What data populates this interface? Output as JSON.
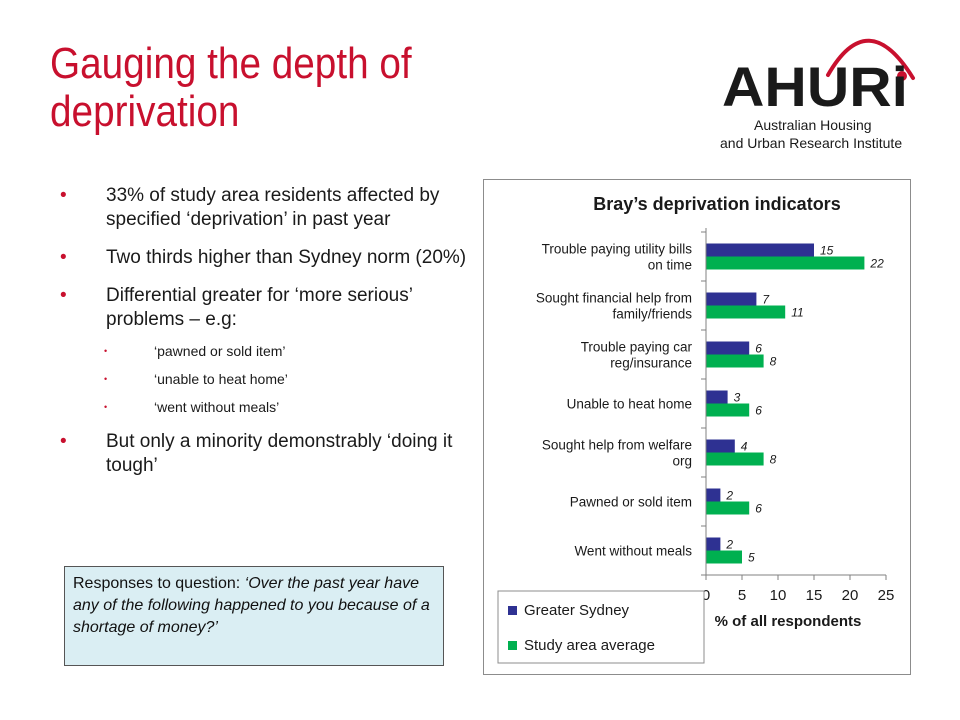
{
  "slide": {
    "title": "Gauging the depth of deprivation",
    "bullets": [
      "33% of study area residents affected by specified ‘deprivation’ in past year",
      "Two thirds higher than Sydney norm (20%)",
      "Differential greater for ‘more serious’ problems – e.g:"
    ],
    "sub_bullets": [
      "‘pawned or sold item’",
      "‘unable to heat home’",
      "‘went without meals’"
    ],
    "last_bullet": "But only a minority demonstrably ‘doing it tough’",
    "note_prefix": "Responses to question: ",
    "note_question": "‘Over the past year have any of the following happened to you because of a shortage of money?’",
    "accent_color": "#c8102e"
  },
  "logo": {
    "wordmark": "AHURi",
    "line1": "Australian Housing",
    "line2": "and Urban Research Institute"
  },
  "chart_data": {
    "type": "bar",
    "orientation": "horizontal",
    "title": "Bray’s deprivation indicators",
    "xlabel": "% of all respondents",
    "ylabel": "",
    "categories": [
      [
        "Trouble paying utility bills",
        "on time"
      ],
      [
        "Sought financial help from",
        "family/friends"
      ],
      [
        "Trouble paying car",
        "reg/insurance"
      ],
      [
        "Unable to heat home"
      ],
      [
        "Sought help from welfare",
        "org"
      ],
      [
        "Pawned or sold item"
      ],
      [
        "Went without meals"
      ]
    ],
    "series": [
      {
        "name": "Greater Sydney",
        "color": "#2e3192",
        "values": [
          15,
          7,
          6,
          3,
          4,
          2,
          2
        ]
      },
      {
        "name": "Study area average",
        "color": "#00b050",
        "values": [
          22,
          11,
          8,
          6,
          8,
          6,
          5
        ]
      }
    ],
    "xlim": [
      0,
      25
    ],
    "xticks": [
      "0",
      "5",
      "10",
      "15",
      "20",
      "25"
    ],
    "legend_position": "bottom-left",
    "grid": false,
    "data_labels": true
  }
}
